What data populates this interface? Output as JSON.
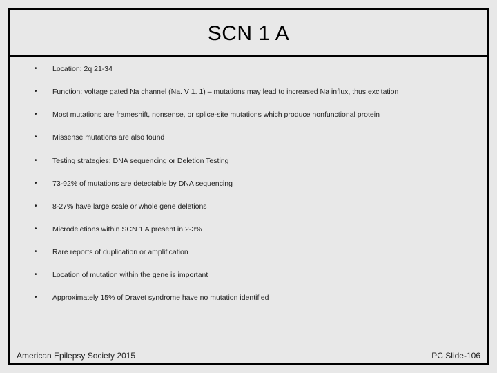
{
  "title": "SCN 1 A",
  "bullets": [
    "Location:  2q 21-34",
    "Function:  voltage gated Na channel (Na. V 1. 1) – mutations may lead to increased Na influx, thus excitation",
    "Most mutations are frameshift, nonsense, or splice-site mutations which produce nonfunctional protein",
    "Missense mutations are also found",
    "Testing strategies:  DNA sequencing or Deletion Testing",
    "73-92% of mutations are detectable by DNA sequencing",
    "8-27% have large scale or whole gene deletions",
    "Microdeletions within SCN 1 A present in 2-3%",
    "Rare reports of duplication or amplification",
    "Location of mutation within the gene is important",
    "Approximately 15% of Dravet syndrome have no mutation identified"
  ],
  "footer": {
    "left": "American Epilepsy Society 2015",
    "right": "PC Slide-106"
  },
  "colors": {
    "background": "#e8e8e8",
    "border": "#000000",
    "text": "#222222"
  }
}
